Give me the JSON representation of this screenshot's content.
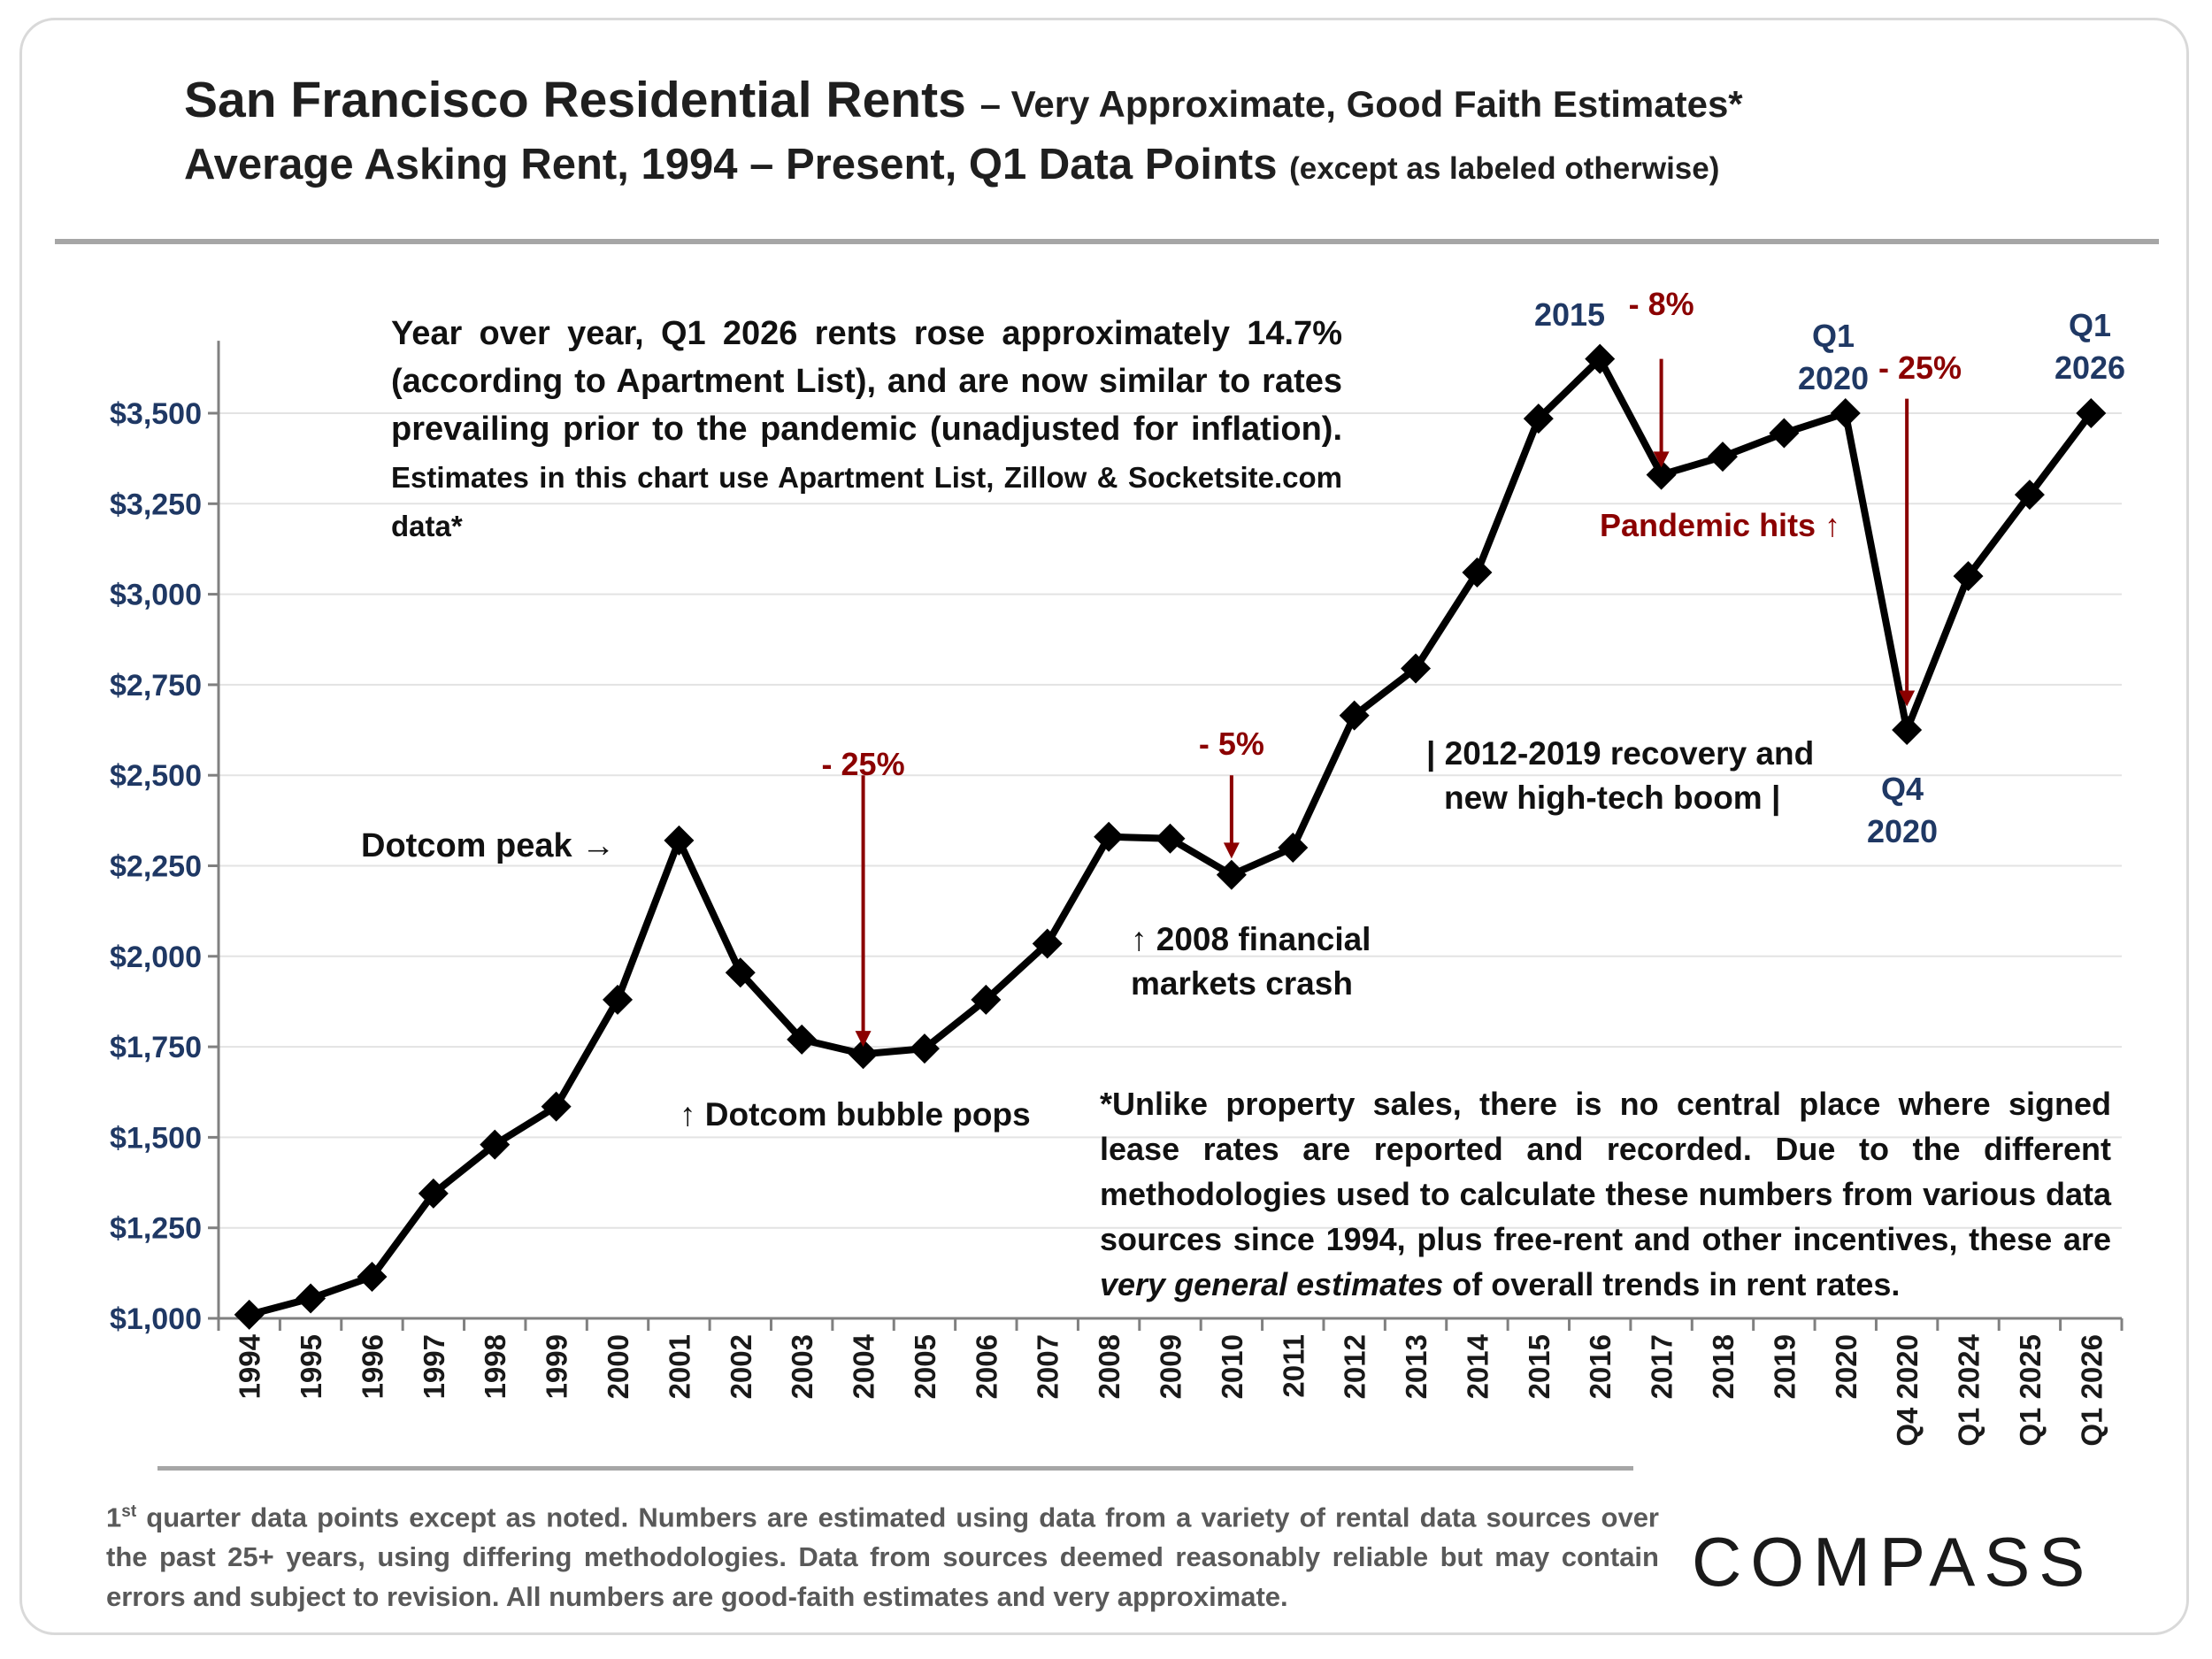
{
  "header": {
    "title_main": "San Francisco Residential Rents",
    "title_sub": "– Very Approximate, Good Faith Estimates*",
    "subtitle_main": "Average Asking Rent, 1994 – Present, Q1 Data Points",
    "subtitle_sub": "(except as labeled otherwise)"
  },
  "notes": {
    "top_main": "Year over year, Q1 2026 rents rose approximately 14.7% (according to Apartment List), and are now similar to rates prevailing prior to the pandemic (unadjusted for inflation).",
    "top_small": "Estimates in this chart use Apartment List, Zillow & Socketsite.com data*",
    "bottom_pre": "*Unlike property sales, there is no central place where signed lease rates are reported and recorded. Due to the different methodologies used to calculate these numbers from various data sources since 1994, plus free-rent and other incentives, these are ",
    "bottom_em": "very general estimates",
    "bottom_post": " of overall trends in rent rates."
  },
  "footer": {
    "sup_num": "1",
    "sup": "st",
    "text": " quarter data points except as noted. Numbers are estimated using data from a variety of rental data sources over the past 25+ years, using differing methodologies. Data from sources deemed reasonably reliable but may contain errors and subject to revision. All numbers are good-faith estimates and very approximate."
  },
  "logo": {
    "text": "COMPASS"
  },
  "colors": {
    "line": "#000000",
    "arrow": "#8b0000",
    "navy": "#1f3864",
    "text": "#111111",
    "grid": "#e3e3e3",
    "axis": "#808080"
  },
  "chart_data": {
    "type": "line",
    "title": "San Francisco Residential Rents",
    "xlabel": "",
    "ylabel": "",
    "ylim": [
      1000,
      3700
    ],
    "yticks": [
      1000,
      1250,
      1500,
      1750,
      2000,
      2250,
      2500,
      2750,
      3000,
      3250,
      3500
    ],
    "ytick_labels": [
      "$1,000",
      "$1,250",
      "$1,500",
      "$1,750",
      "$2,000",
      "$2,250",
      "$2,500",
      "$2,750",
      "$3,000",
      "$3,250",
      "$3,500"
    ],
    "grid": true,
    "categories": [
      "1994",
      "1995",
      "1996",
      "1997",
      "1998",
      "1999",
      "2000",
      "2001",
      "2002",
      "2003",
      "2004",
      "2005",
      "2006",
      "2007",
      "2008",
      "2009",
      "2010",
      "2011",
      "2012",
      "2013",
      "2014",
      "2015",
      "2016",
      "2017",
      "2018",
      "2019",
      "2020",
      "Q4 2020",
      "Q1 2024",
      "Q1 2025",
      "Q1 2026"
    ],
    "series": [
      {
        "name": "Average Asking Rent",
        "values": [
          1010,
          1055,
          1115,
          1345,
          1480,
          1585,
          1880,
          2320,
          1955,
          1770,
          1730,
          1745,
          1880,
          2035,
          2330,
          2325,
          2225,
          2300,
          2665,
          2795,
          3060,
          3485,
          3650,
          3330,
          3380,
          3445,
          3500,
          2625,
          3050,
          3275,
          3500
        ]
      }
    ],
    "annotations": [
      {
        "id": "dotcom-peak",
        "text": "Dotcom peak →",
        "color": "text"
      },
      {
        "id": "bubble-pops",
        "text": "↑ Dotcom bubble pops",
        "color": "text"
      },
      {
        "id": "drop-2004",
        "text": "- 25%",
        "color": "arrow",
        "from": 2500,
        "to": 1750,
        "at": "2004"
      },
      {
        "id": "drop-2010",
        "text": "- 5%",
        "color": "arrow",
        "from": 2500,
        "to": 2270,
        "at": "2010"
      },
      {
        "id": "crash-line1",
        "text": "↑ 2008 financial",
        "color": "text"
      },
      {
        "id": "crash-line2",
        "text": "markets crash",
        "color": "text"
      },
      {
        "id": "boom-line1",
        "text": "| 2012-2019 recovery and",
        "color": "text"
      },
      {
        "id": "boom-line2",
        "text": "new high-tech boom |",
        "color": "text"
      },
      {
        "id": "label-2015",
        "text": "2015",
        "color": "navy"
      },
      {
        "id": "drop-2017",
        "text": "- 8%",
        "color": "arrow",
        "from": 3650,
        "to": 3350,
        "at": "2017"
      },
      {
        "id": "pandemic",
        "text": "Pandemic hits ↑",
        "color": "arrow"
      },
      {
        "id": "q1-2020-line1",
        "text": "Q1",
        "color": "navy"
      },
      {
        "id": "q1-2020-line2",
        "text": "2020",
        "color": "navy"
      },
      {
        "id": "drop-2020",
        "text": "- 25%",
        "color": "arrow",
        "from": 3540,
        "to": 2690,
        "at": "Q4 2020"
      },
      {
        "id": "q4-2020-line1",
        "text": "Q4",
        "color": "navy"
      },
      {
        "id": "q4-2020-line2",
        "text": "2020",
        "color": "navy"
      },
      {
        "id": "q1-2026-line1",
        "text": "Q1",
        "color": "navy"
      },
      {
        "id": "q1-2026-line2",
        "text": "2026",
        "color": "navy"
      }
    ]
  }
}
